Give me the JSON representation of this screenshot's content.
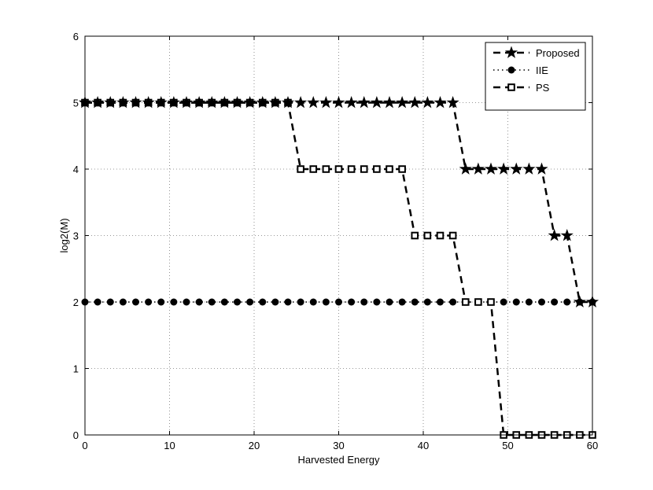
{
  "chart_data": {
    "type": "line",
    "title": "",
    "xlabel": "Harvested Energy",
    "ylabel": "log2(M)",
    "xlim": [
      0,
      60
    ],
    "ylim": [
      0,
      6
    ],
    "xticks": [
      "0",
      "10",
      "20",
      "30",
      "40",
      "50",
      "60"
    ],
    "yticks": [
      "0",
      "1",
      "2",
      "3",
      "4",
      "5",
      "6"
    ],
    "grid": true,
    "legend_position": "top-right",
    "series": [
      {
        "name": "Proposed",
        "marker": "star",
        "linestyle": "dashed",
        "color": "#000000",
        "x": [
          0,
          1.5,
          3,
          4.5,
          6,
          7.5,
          9,
          10.5,
          12,
          13.5,
          15,
          16.5,
          18,
          19.5,
          21,
          22.5,
          24,
          25.5,
          27,
          28.5,
          30,
          31.5,
          33,
          34.5,
          36,
          37.5,
          39,
          40.5,
          42,
          43.5,
          45,
          46.5,
          48,
          49.5,
          51,
          52.5,
          54,
          55.5,
          57,
          58.5,
          60
        ],
        "y": [
          5,
          5,
          5,
          5,
          5,
          5,
          5,
          5,
          5,
          5,
          5,
          5,
          5,
          5,
          5,
          5,
          5,
          5,
          5,
          5,
          5,
          5,
          5,
          5,
          5,
          5,
          5,
          5,
          5,
          5,
          4,
          4,
          4,
          4,
          4,
          4,
          4,
          3,
          3,
          2,
          2
        ]
      },
      {
        "name": "IIE",
        "marker": "circle",
        "linestyle": "dotted",
        "color": "#000000",
        "x": [
          0,
          1.5,
          3,
          4.5,
          6,
          7.5,
          9,
          10.5,
          12,
          13.5,
          15,
          16.5,
          18,
          19.5,
          21,
          22.5,
          24,
          25.5,
          27,
          28.5,
          30,
          31.5,
          33,
          34.5,
          36,
          37.5,
          39,
          40.5,
          42,
          43.5,
          45,
          46.5,
          48,
          49.5,
          51,
          52.5,
          54,
          55.5,
          57,
          58.5,
          60
        ],
        "y": [
          2,
          2,
          2,
          2,
          2,
          2,
          2,
          2,
          2,
          2,
          2,
          2,
          2,
          2,
          2,
          2,
          2,
          2,
          2,
          2,
          2,
          2,
          2,
          2,
          2,
          2,
          2,
          2,
          2,
          2,
          2,
          2,
          2,
          2,
          2,
          2,
          2,
          2,
          2,
          2,
          2
        ]
      },
      {
        "name": "PS",
        "marker": "square",
        "linestyle": "dashed",
        "color": "#000000",
        "x": [
          0,
          1.5,
          3,
          4.5,
          6,
          7.5,
          9,
          10.5,
          12,
          13.5,
          15,
          16.5,
          18,
          19.5,
          21,
          22.5,
          24,
          25.5,
          27,
          28.5,
          30,
          31.5,
          33,
          34.5,
          36,
          37.5,
          39,
          40.5,
          42,
          43.5,
          45,
          46.5,
          48,
          49.5,
          51,
          52.5,
          54,
          55.5,
          57,
          58.5,
          60
        ],
        "y": [
          5,
          5,
          5,
          5,
          5,
          5,
          5,
          5,
          5,
          5,
          5,
          5,
          5,
          5,
          5,
          5,
          5,
          4,
          4,
          4,
          4,
          4,
          4,
          4,
          4,
          4,
          3,
          3,
          3,
          3,
          2,
          2,
          2,
          0,
          0,
          0,
          0,
          0,
          0,
          0,
          0
        ]
      }
    ]
  }
}
